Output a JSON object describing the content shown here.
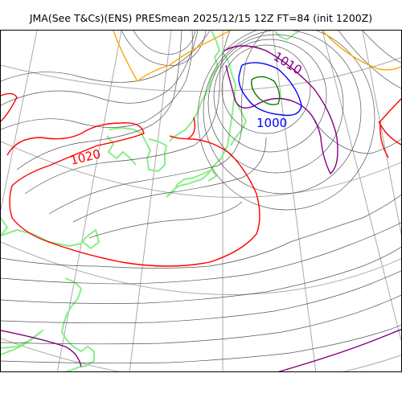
{
  "title": "JMA(See T&Cs)(ENS) PRESmean 2025/12/15 12Z FT=84 (init 1200Z)",
  "colors": {
    "isobar": "#555555",
    "grid": "#aaaaaa",
    "coast": "#88ee88",
    "iso_1020": "#ff0000",
    "iso_1012": "#ffa500",
    "iso_1008": "#800080",
    "iso_1000": "#0000ff",
    "iso_996": "#008000"
  },
  "contour_labels": [
    {
      "text": "1020",
      "color": "#ff0000"
    },
    {
      "text": "1010",
      "color": "#800080"
    },
    {
      "text": "1000",
      "color": "#0000ff"
    }
  ]
}
